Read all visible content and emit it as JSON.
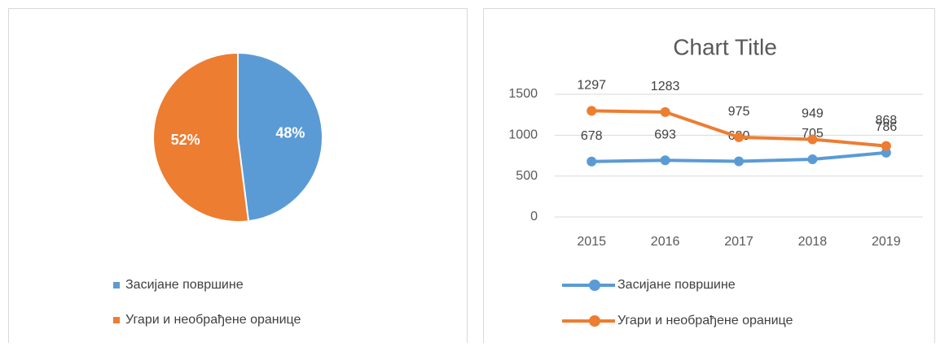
{
  "chart_data": [
    {
      "type": "pie",
      "categories": [
        "Засијане површине",
        "Угари и необрађене оранице"
      ],
      "values": [
        48,
        52
      ],
      "value_labels": [
        "48%",
        "52%"
      ],
      "colors": [
        "#5b9bd5",
        "#ed7d31"
      ],
      "legend": "bottom"
    },
    {
      "type": "line",
      "title": "Chart Title",
      "categories": [
        "2015",
        "2016",
        "2017",
        "2018",
        "2019"
      ],
      "series": [
        {
          "name": "Засијане површине",
          "color": "#5b9bd5",
          "values": [
            678,
            693,
            680,
            705,
            786
          ]
        },
        {
          "name": "Угари и необрађене оранице",
          "color": "#ed7d31",
          "values": [
            1297,
            1283,
            975,
            949,
            868
          ]
        }
      ],
      "ylim": [
        0,
        1500
      ],
      "yticks": [
        0,
        500,
        1000,
        1500
      ],
      "grid": true,
      "legend": "bottom"
    }
  ]
}
